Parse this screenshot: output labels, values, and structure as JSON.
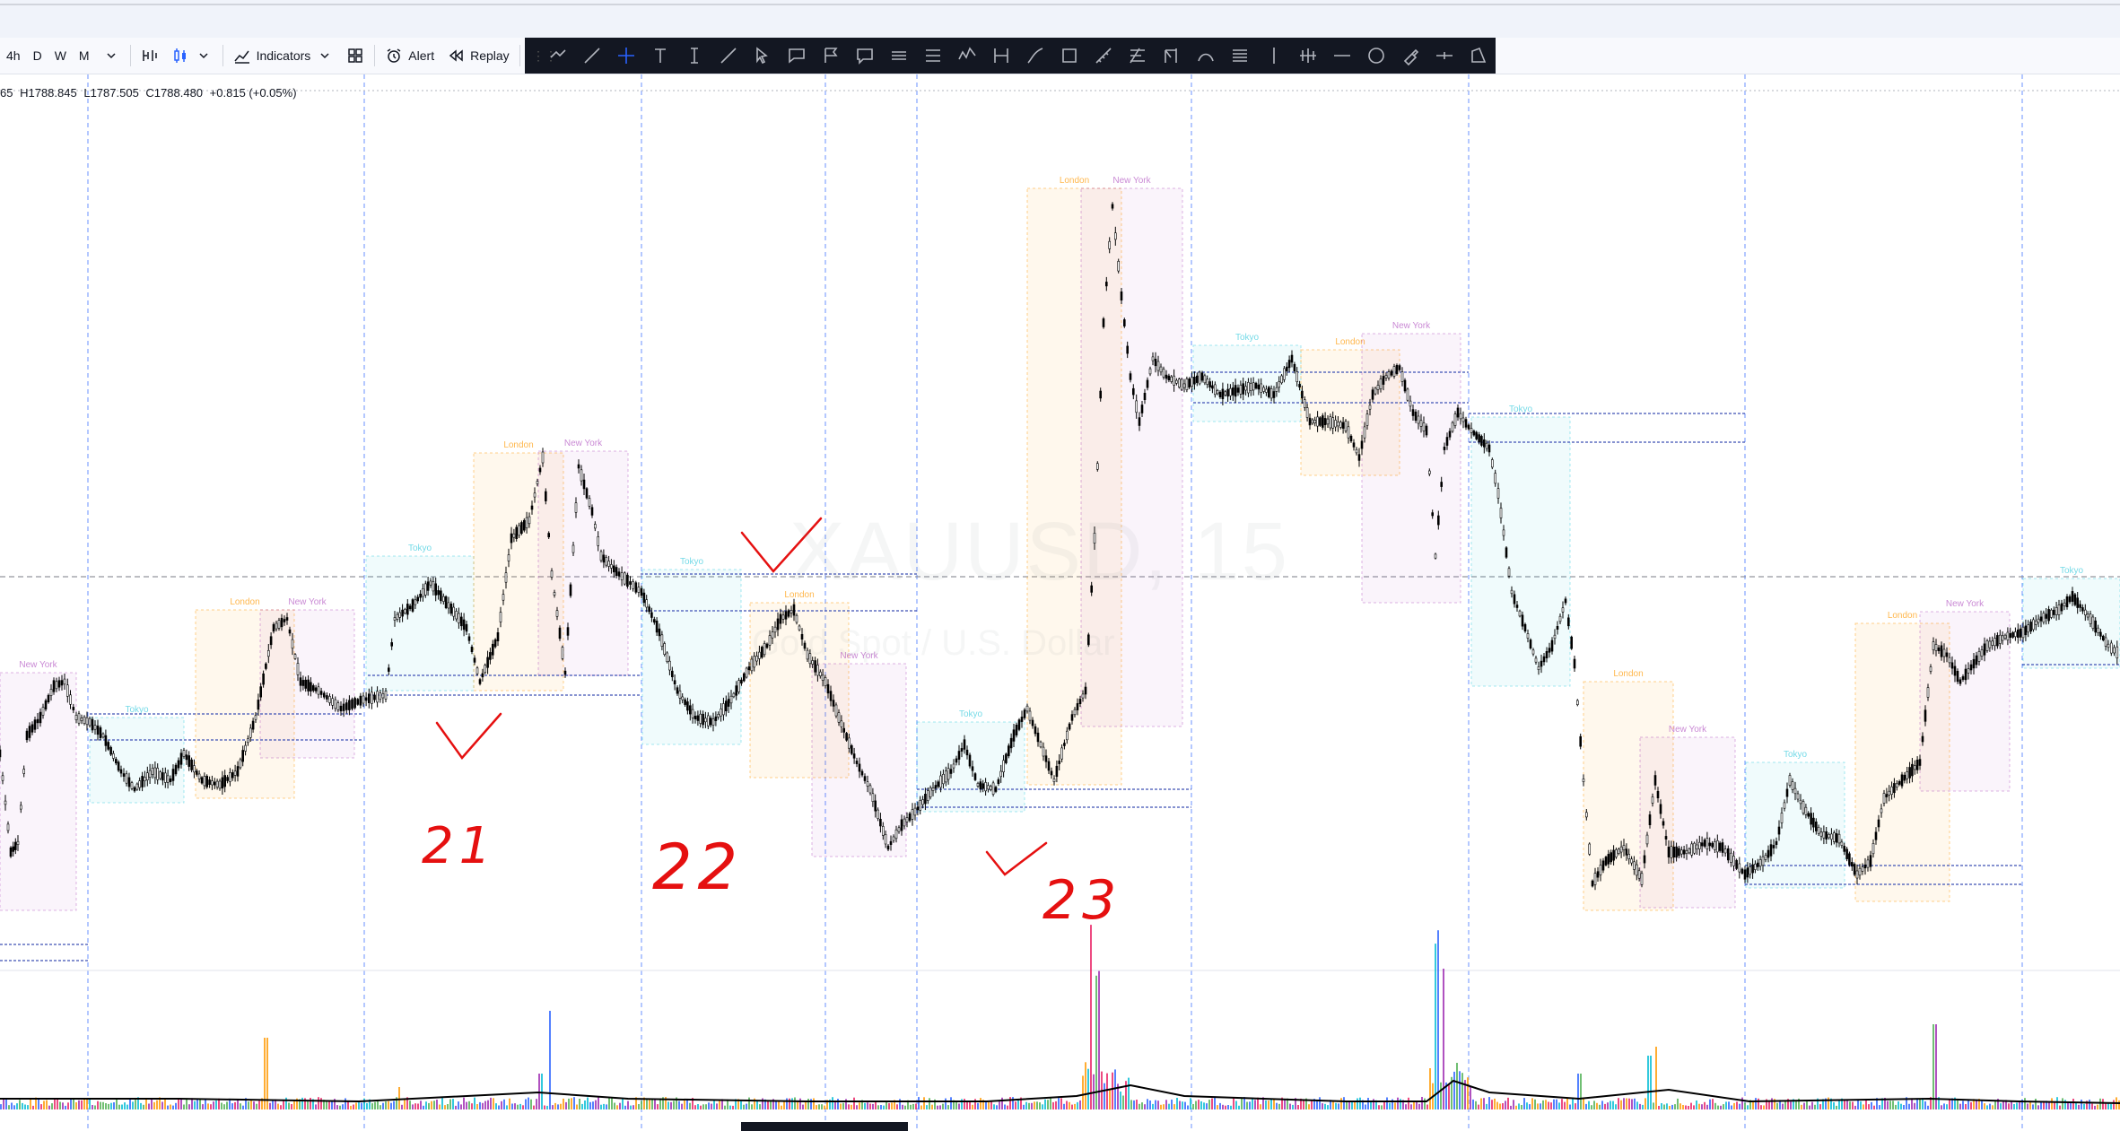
{
  "toolbar": {
    "intervals": [
      "4h",
      "D",
      "W",
      "M"
    ],
    "indicators_label": "Indicators",
    "alert_label": "Alert",
    "replay_label": "Replay"
  },
  "drawing_tools": [
    "undo-icon",
    "pen-icon",
    "crosshair-icon",
    "text-icon",
    "text-cursor-icon",
    "trend-line-icon",
    "cursor-arrow-icon",
    "callout-icon",
    "flag-pin-icon",
    "comment-icon",
    "range-icon",
    "channel-icon",
    "zigzag-icon",
    "bracket-icon",
    "brush-icon",
    "rectangle-icon",
    "ruler-icon",
    "fib-icon",
    "pitchfork-icon",
    "arc-icon",
    "lines-icon",
    "vertical-line-icon",
    "bars-pattern-icon",
    "horizontal-line-icon",
    "circle-icon",
    "eraser-icon",
    "ray-icon",
    "polygon-icon"
  ],
  "ohlc": {
    "open_fragment": "65",
    "high": "H1788.845",
    "low": "L1787.505",
    "close": "C1788.480",
    "change": "+0.815 (+0.05%)"
  },
  "watermark": {
    "symbol": "XAUUSD, 15",
    "description": "Gold Spot / U.S. Dollar"
  },
  "sessions": {
    "london": "London",
    "new_york": "New York",
    "tokyo": "Tokyo"
  },
  "annotations": [
    "21",
    "22",
    "23"
  ],
  "colors": {
    "toolbar_dark": "#131722",
    "session_london": "#ff9800",
    "session_newyork": "#9c27b0",
    "session_tokyo": "#00bcd4",
    "level_line": "#3f51b5",
    "divider": "#2962ff",
    "annotation_red": "#e51010",
    "candle": "#000000"
  }
}
